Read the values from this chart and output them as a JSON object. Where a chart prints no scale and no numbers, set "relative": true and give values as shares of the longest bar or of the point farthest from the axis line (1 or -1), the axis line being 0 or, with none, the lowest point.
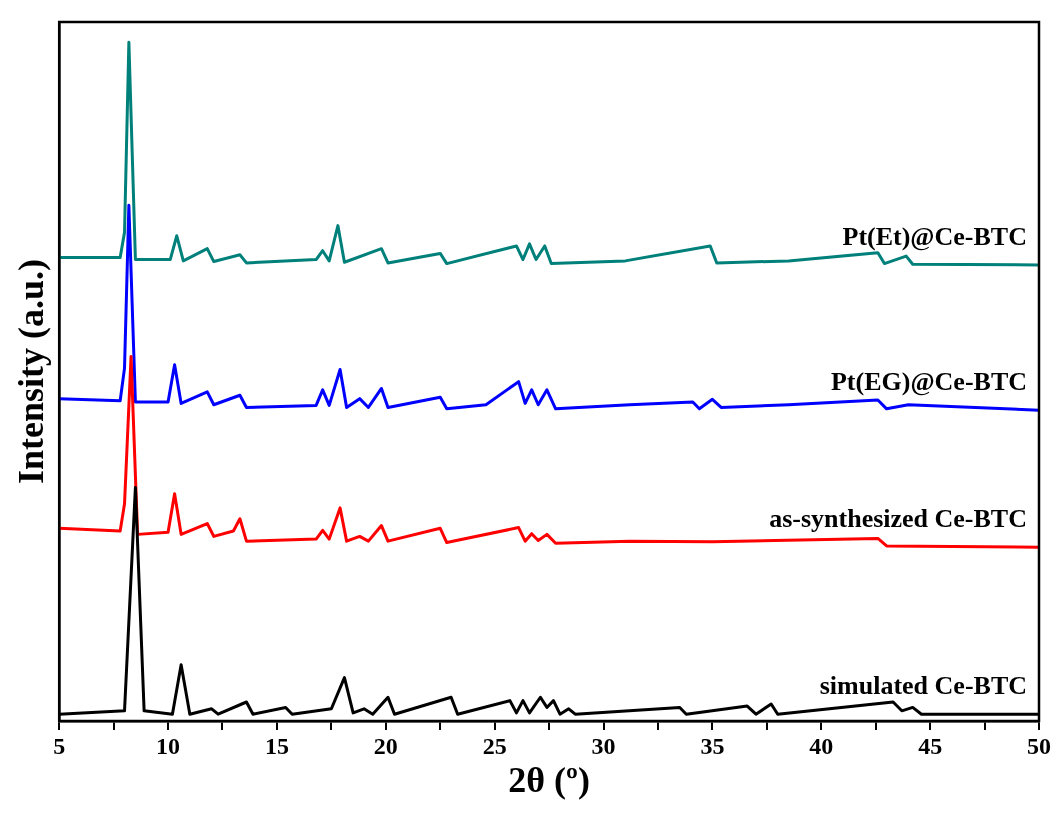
{
  "chart_data": {
    "type": "line",
    "relative": true,
    "xlabel": "2θ (º)",
    "ylabel": "Intensity (a.u.)",
    "xlim": [
      5,
      50
    ],
    "xticks": [
      5,
      {
        "value": 7.5,
        "label": null
      },
      10,
      {
        "value": 12.5,
        "label": null
      },
      15,
      {
        "value": 17.5,
        "label": null
      },
      20,
      {
        "value": 22.5,
        "label": null
      },
      25,
      {
        "value": 27.5,
        "label": null
      },
      30,
      {
        "value": 32.5,
        "label": null
      },
      35,
      {
        "value": 37.5,
        "label": null
      },
      40,
      {
        "value": 42.5,
        "label": null
      },
      45,
      {
        "value": 47.5,
        "label": null
      },
      50
    ],
    "tick_labels": "x",
    "grid": false,
    "marker": "none",
    "line_style": "solid",
    "series": [
      {
        "name": "simulated Ce-BTC",
        "color": "#000000",
        "x": [
          5,
          8.0,
          8.5,
          8.9,
          10.2,
          10.6,
          11.0,
          12.0,
          12.3,
          13.6,
          13.9,
          15.4,
          15.7,
          17.5,
          18.1,
          18.5,
          19.0,
          19.4,
          20.1,
          20.4,
          23.0,
          23.3,
          25.7,
          26.0,
          26.3,
          26.6,
          27.1,
          27.4,
          27.7,
          28.0,
          28.4,
          28.7,
          33.5,
          33.8,
          36.6,
          37.0,
          37.7,
          38.0,
          43.3,
          43.7,
          44.2,
          44.6,
          50
        ],
        "values": [
          0.01,
          0.015,
          0.344,
          0.015,
          0.01,
          0.083,
          0.01,
          0.018,
          0.01,
          0.028,
          0.01,
          0.02,
          0.01,
          0.018,
          0.064,
          0.012,
          0.018,
          0.01,
          0.035,
          0.01,
          0.035,
          0.01,
          0.03,
          0.012,
          0.03,
          0.012,
          0.035,
          0.02,
          0.03,
          0.01,
          0.018,
          0.01,
          0.02,
          0.01,
          0.022,
          0.01,
          0.025,
          0.01,
          0.028,
          0.015,
          0.02,
          0.01,
          0.01
        ]
      },
      {
        "name": "as-synthesized Ce-BTC",
        "color": "#ff0000",
        "x": [
          5,
          7.8,
          8.0,
          8.3,
          8.6,
          10.0,
          10.3,
          10.6,
          11.8,
          12.1,
          13.0,
          13.3,
          13.6,
          16.8,
          17.1,
          17.4,
          17.9,
          18.2,
          18.8,
          19.2,
          19.8,
          20.1,
          22.5,
          22.8,
          26.1,
          26.4,
          26.7,
          27.0,
          27.4,
          27.8,
          31.2,
          35.0,
          42.6,
          43.0,
          50
        ],
        "values": [
          0.284,
          0.28,
          0.32,
          0.537,
          0.275,
          0.278,
          0.335,
          0.275,
          0.291,
          0.272,
          0.28,
          0.298,
          0.265,
          0.268,
          0.281,
          0.268,
          0.314,
          0.265,
          0.272,
          0.265,
          0.288,
          0.265,
          0.284,
          0.263,
          0.285,
          0.265,
          0.276,
          0.266,
          0.275,
          0.262,
          0.265,
          0.264,
          0.269,
          0.258,
          0.256
        ]
      },
      {
        "name": "Pt(EG)@Ce-BTC",
        "color": "#0000ff",
        "x": [
          5,
          7.8,
          8.0,
          8.2,
          8.5,
          10.0,
          10.3,
          10.6,
          11.8,
          12.1,
          13.3,
          13.6,
          16.8,
          17.1,
          17.4,
          17.9,
          18.2,
          18.8,
          19.2,
          19.8,
          20.1,
          22.5,
          22.8,
          24.6,
          26.1,
          26.4,
          26.7,
          27.0,
          27.4,
          27.8,
          31.2,
          34.1,
          34.4,
          35.0,
          35.4,
          38.5,
          42.6,
          43.0,
          44.0,
          50
        ],
        "values": [
          0.475,
          0.472,
          0.52,
          0.76,
          0.47,
          0.47,
          0.525,
          0.468,
          0.485,
          0.466,
          0.48,
          0.462,
          0.465,
          0.488,
          0.465,
          0.518,
          0.462,
          0.475,
          0.462,
          0.49,
          0.462,
          0.477,
          0.46,
          0.466,
          0.5,
          0.468,
          0.488,
          0.466,
          0.488,
          0.46,
          0.466,
          0.47,
          0.46,
          0.474,
          0.462,
          0.466,
          0.473,
          0.46,
          0.466,
          0.458
        ]
      },
      {
        "name": "Pt(Et)@Ce-BTC",
        "color": "#00807a",
        "x": [
          5,
          7.8,
          8.0,
          8.2,
          8.5,
          10.1,
          10.4,
          10.7,
          11.8,
          12.1,
          13.3,
          13.6,
          16.8,
          17.1,
          17.4,
          17.8,
          18.1,
          19.8,
          20.1,
          22.5,
          22.8,
          26.0,
          26.3,
          26.6,
          26.9,
          27.3,
          27.6,
          31.0,
          34.9,
          35.2,
          38.5,
          42.6,
          42.9,
          43.9,
          44.2,
          50
        ],
        "values": [
          0.683,
          0.683,
          0.72,
          1.0,
          0.68,
          0.68,
          0.715,
          0.678,
          0.696,
          0.677,
          0.687,
          0.675,
          0.68,
          0.693,
          0.678,
          0.73,
          0.676,
          0.696,
          0.675,
          0.689,
          0.674,
          0.7,
          0.68,
          0.703,
          0.68,
          0.7,
          0.674,
          0.678,
          0.7,
          0.675,
          0.678,
          0.69,
          0.674,
          0.685,
          0.673,
          0.672
        ]
      }
    ]
  }
}
